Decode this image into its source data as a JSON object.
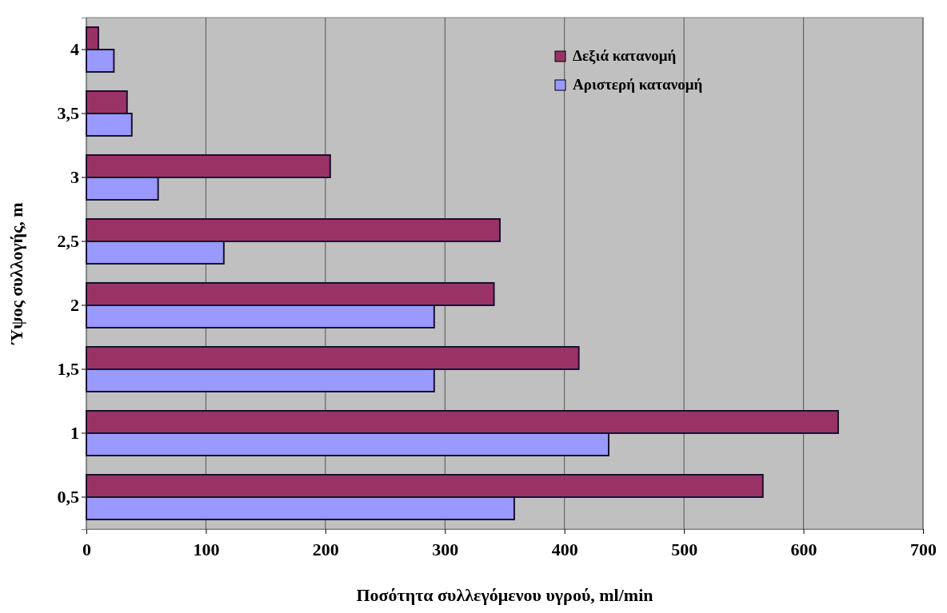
{
  "chart_data": {
    "type": "bar",
    "orientation": "horizontal",
    "xlabel": "Ποσότητα συλλεγόμενου υγρού, ml/min",
    "ylabel": "Ύψος συλλογής, m",
    "categories": [
      "4",
      "3,5",
      "3",
      "2,5",
      "2",
      "1,5",
      "1",
      "0,5"
    ],
    "series": [
      {
        "name": "Δεξιά κατανομή",
        "color": "#993366",
        "values": [
          10,
          34,
          204,
          346,
          341,
          412,
          629,
          566
        ]
      },
      {
        "name": "Αριστερή κατανομή",
        "color": "#9999ff",
        "values": [
          23,
          38,
          60,
          115,
          291,
          291,
          437,
          358
        ]
      }
    ],
    "xlim": [
      0,
      700
    ],
    "xticks": [
      0,
      100,
      200,
      300,
      400,
      500,
      600,
      700
    ],
    "grid": "x",
    "legend": "top right"
  }
}
